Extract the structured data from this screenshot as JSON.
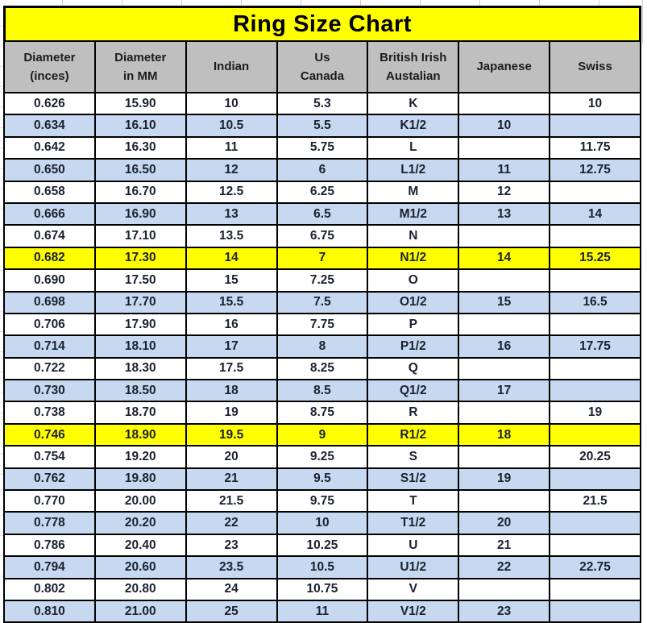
{
  "title": "Ring Size Chart",
  "colors": {
    "title_bg": "#ffff00",
    "header_bg": "#bfbfbf",
    "row_alt_bg": "#c6d9f0",
    "row_highlight_bg": "#ffff00",
    "border": "#000000",
    "text": "#1b2130"
  },
  "chart_data": {
    "type": "table",
    "title": "Ring Size Chart",
    "columns": [
      "Diameter\n(inces)",
      "Diameter\nin MM",
      "Indian",
      "Us\nCanada",
      "British Irish\nAustalian",
      "Japanese",
      "Swiss"
    ],
    "rows": [
      {
        "style": "plain",
        "cells": [
          "0.626",
          "15.90",
          "10",
          "5.3",
          "K",
          "",
          "10"
        ]
      },
      {
        "style": "alt",
        "cells": [
          "0.634",
          "16.10",
          "10.5",
          "5.5",
          "K1/2",
          "10",
          ""
        ]
      },
      {
        "style": "plain",
        "cells": [
          "0.642",
          "16.30",
          "11",
          "5.75",
          "L",
          "",
          "11.75"
        ]
      },
      {
        "style": "alt",
        "cells": [
          "0.650",
          "16.50",
          "12",
          "6",
          "L1/2",
          "11",
          "12.75"
        ]
      },
      {
        "style": "plain",
        "cells": [
          "0.658",
          "16.70",
          "12.5",
          "6.25",
          "M",
          "12",
          ""
        ]
      },
      {
        "style": "alt",
        "cells": [
          "0.666",
          "16.90",
          "13",
          "6.5",
          "M1/2",
          "13",
          "14"
        ]
      },
      {
        "style": "plain",
        "cells": [
          "0.674",
          "17.10",
          "13.5",
          "6.75",
          "N",
          "",
          ""
        ]
      },
      {
        "style": "highlight",
        "cells": [
          "0.682",
          "17.30",
          "14",
          "7",
          "N1/2",
          "14",
          "15.25"
        ]
      },
      {
        "style": "plain",
        "cells": [
          "0.690",
          "17.50",
          "15",
          "7.25",
          "O",
          "",
          ""
        ]
      },
      {
        "style": "alt",
        "cells": [
          "0.698",
          "17.70",
          "15.5",
          "7.5",
          "O1/2",
          "15",
          "16.5"
        ]
      },
      {
        "style": "plain",
        "cells": [
          "0.706",
          "17.90",
          "16",
          "7.75",
          "P",
          "",
          ""
        ]
      },
      {
        "style": "alt",
        "cells": [
          "0.714",
          "18.10",
          "17",
          "8",
          "P1/2",
          "16",
          "17.75"
        ]
      },
      {
        "style": "plain",
        "cells": [
          "0.722",
          "18.30",
          "17.5",
          "8.25",
          "Q",
          "",
          ""
        ]
      },
      {
        "style": "alt",
        "cells": [
          "0.730",
          "18.50",
          "18",
          "8.5",
          "Q1/2",
          "17",
          ""
        ]
      },
      {
        "style": "plain",
        "cells": [
          "0.738",
          "18.70",
          "19",
          "8.75",
          "R",
          "",
          "19"
        ]
      },
      {
        "style": "highlight",
        "cells": [
          "0.746",
          "18.90",
          "19.5",
          "9",
          "R1/2",
          "18",
          ""
        ]
      },
      {
        "style": "plain",
        "cells": [
          "0.754",
          "19.20",
          "20",
          "9.25",
          "S",
          "",
          "20.25"
        ]
      },
      {
        "style": "alt",
        "cells": [
          "0.762",
          "19.80",
          "21",
          "9.5",
          "S1/2",
          "19",
          ""
        ]
      },
      {
        "style": "plain",
        "cells": [
          "0.770",
          "20.00",
          "21.5",
          "9.75",
          "T",
          "",
          "21.5"
        ]
      },
      {
        "style": "alt",
        "cells": [
          "0.778",
          "20.20",
          "22",
          "10",
          "T1/2",
          "20",
          ""
        ]
      },
      {
        "style": "plain",
        "cells": [
          "0.786",
          "20.40",
          "23",
          "10.25",
          "U",
          "21",
          ""
        ]
      },
      {
        "style": "alt",
        "cells": [
          "0.794",
          "20.60",
          "23.5",
          "10.5",
          "U1/2",
          "22",
          "22.75"
        ]
      },
      {
        "style": "plain",
        "cells": [
          "0.802",
          "20.80",
          "24",
          "10.75",
          "V",
          "",
          ""
        ]
      },
      {
        "style": "alt",
        "cells": [
          "0.810",
          "21.00",
          "25",
          "11",
          "V1/2",
          "23",
          ""
        ]
      }
    ],
    "highlighted_row_diameters": [
      "0.682",
      "0.746"
    ],
    "layout": {
      "columns_count": 7,
      "rows_count": 24,
      "banding": "alternating white / light blue"
    }
  }
}
